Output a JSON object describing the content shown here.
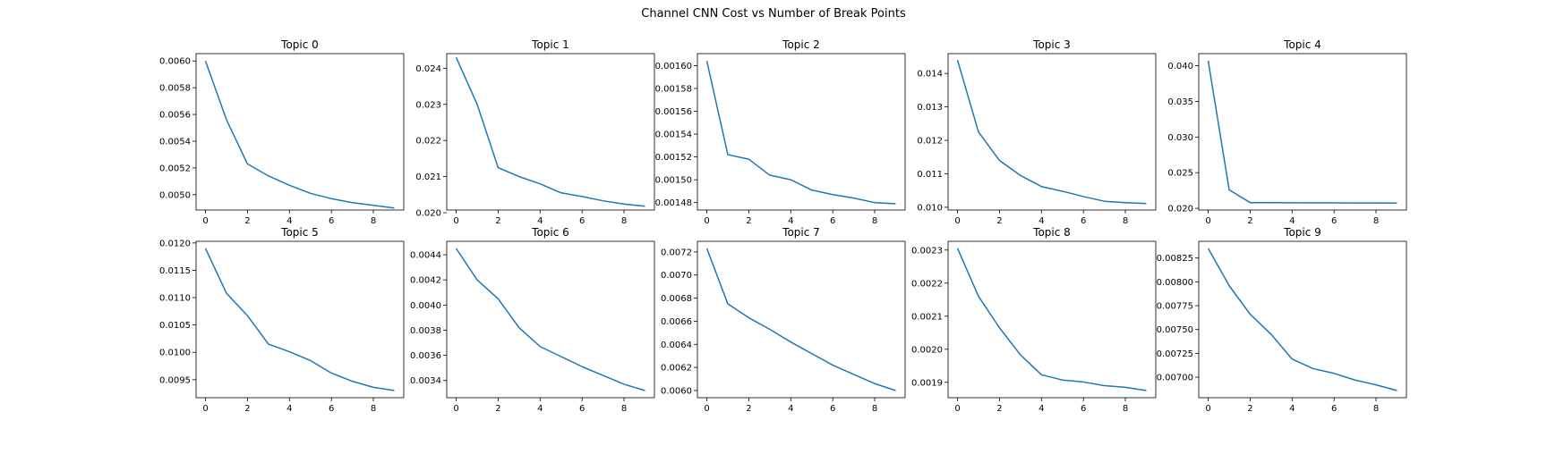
{
  "figure": {
    "title": "Channel CNN Cost vs Number of Break Points",
    "line_color": "#1f77b4"
  },
  "chart_data": [
    {
      "type": "line",
      "title": "Topic 0",
      "x": [
        0,
        1,
        2,
        3,
        4,
        5,
        6,
        7,
        8,
        9
      ],
      "series": [
        {
          "values": [
            0.006,
            0.00556,
            0.00523,
            0.00514,
            0.00507,
            0.00501,
            0.00497,
            0.00494,
            0.00492,
            0.0049
          ]
        }
      ],
      "xlim": [
        -0.45,
        9.45
      ],
      "ylim": [
        0.004885,
        0.006055
      ],
      "xticks": [
        0,
        2,
        4,
        6,
        8
      ],
      "yticks": [
        0.005,
        0.0052,
        0.0054,
        0.0056,
        0.0058,
        0.006
      ],
      "yticklabels": [
        "0.0050",
        "0.0052",
        "0.0054",
        "0.0056",
        "0.0058",
        "0.0060"
      ],
      "grid": false
    },
    {
      "type": "line",
      "title": "Topic 1",
      "x": [
        0,
        1,
        2,
        3,
        4,
        5,
        6,
        7,
        8,
        9
      ],
      "series": [
        {
          "values": [
            0.0243,
            0.023,
            0.02125,
            0.021,
            0.0208,
            0.02055,
            0.02045,
            0.02033,
            0.02024,
            0.02018
          ]
        }
      ],
      "xlim": [
        -0.45,
        9.45
      ],
      "ylim": [
        0.020075,
        0.024405
      ],
      "xticks": [
        0,
        2,
        4,
        6,
        8
      ],
      "yticks": [
        0.02,
        0.021,
        0.022,
        0.023,
        0.024
      ],
      "yticklabels": [
        "0.020",
        "0.021",
        "0.022",
        "0.023",
        "0.024"
      ],
      "grid": false
    },
    {
      "type": "line",
      "title": "Topic 2",
      "x": [
        0,
        1,
        2,
        3,
        4,
        5,
        6,
        7,
        8,
        9
      ],
      "series": [
        {
          "values": [
            0.001604,
            0.001522,
            0.001518,
            0.001504,
            0.0015,
            0.001491,
            0.001487,
            0.001484,
            0.00148,
            0.001479
          ]
        }
      ],
      "xlim": [
        -0.45,
        9.45
      ],
      "ylim": [
        0.0014735,
        0.0016105
      ],
      "xticks": [
        0,
        2,
        4,
        6,
        8
      ],
      "yticks": [
        0.00148,
        0.0015,
        0.00152,
        0.00154,
        0.00156,
        0.00158,
        0.0016
      ],
      "yticklabels": [
        "0.00148",
        "0.00150",
        "0.00152",
        "0.00154",
        "0.00156",
        "0.00158",
        "0.00160"
      ],
      "grid": false
    },
    {
      "type": "line",
      "title": "Topic 3",
      "x": [
        0,
        1,
        2,
        3,
        4,
        5,
        6,
        7,
        8,
        9
      ],
      "series": [
        {
          "values": [
            0.0144,
            0.01225,
            0.0114,
            0.01095,
            0.01062,
            0.01048,
            0.01032,
            0.01018,
            0.01014,
            0.01011
          ]
        }
      ],
      "xlim": [
        -0.45,
        9.45
      ],
      "ylim": [
        0.009918,
        0.014592
      ],
      "xticks": [
        0,
        2,
        4,
        6,
        8
      ],
      "yticks": [
        0.01,
        0.011,
        0.012,
        0.013,
        0.014
      ],
      "yticklabels": [
        "0.010",
        "0.011",
        "0.012",
        "0.013",
        "0.014"
      ],
      "grid": false
    },
    {
      "type": "line",
      "title": "Topic 4",
      "x": [
        0,
        1,
        2,
        3,
        4,
        5,
        6,
        7,
        8,
        9
      ],
      "series": [
        {
          "values": [
            0.0407,
            0.0226,
            0.0208,
            0.02079,
            0.02078,
            0.02077,
            0.02076,
            0.02075,
            0.02074,
            0.02073
          ]
        }
      ],
      "xlim": [
        -0.45,
        9.45
      ],
      "ylim": [
        0.01976,
        0.0417
      ],
      "xticks": [
        0,
        2,
        4,
        6,
        8
      ],
      "yticks": [
        0.02,
        0.025,
        0.03,
        0.035,
        0.04
      ],
      "yticklabels": [
        "0.020",
        "0.025",
        "0.030",
        "0.035",
        "0.040"
      ],
      "grid": false
    },
    {
      "type": "line",
      "title": "Topic 5",
      "x": [
        0,
        1,
        2,
        3,
        4,
        5,
        6,
        7,
        8,
        9
      ],
      "series": [
        {
          "values": [
            0.0119,
            0.01108,
            0.01067,
            0.01015,
            0.01001,
            0.00985,
            0.00962,
            0.00947,
            0.00936,
            0.0093
          ]
        }
      ],
      "xlim": [
        -0.45,
        9.45
      ],
      "ylim": [
        0.00917,
        0.01203
      ],
      "xticks": [
        0,
        2,
        4,
        6,
        8
      ],
      "yticks": [
        0.0095,
        0.01,
        0.0105,
        0.011,
        0.0115,
        0.012
      ],
      "yticklabels": [
        "0.0095",
        "0.0100",
        "0.0105",
        "0.0110",
        "0.0115",
        "0.0120"
      ],
      "grid": false
    },
    {
      "type": "line",
      "title": "Topic 6",
      "x": [
        0,
        1,
        2,
        3,
        4,
        5,
        6,
        7,
        8,
        9
      ],
      "series": [
        {
          "values": [
            0.00445,
            0.0042,
            0.00405,
            0.00382,
            0.00367,
            0.00359,
            0.00351,
            0.00344,
            0.00337,
            0.00332
          ]
        }
      ],
      "xlim": [
        -0.45,
        9.45
      ],
      "ylim": [
        0.003263,
        0.004507
      ],
      "xticks": [
        0,
        2,
        4,
        6,
        8
      ],
      "yticks": [
        0.0034,
        0.0036,
        0.0038,
        0.004,
        0.0042,
        0.0044
      ],
      "yticklabels": [
        "0.0034",
        "0.0036",
        "0.0038",
        "0.0040",
        "0.0042",
        "0.0044"
      ],
      "grid": false
    },
    {
      "type": "line",
      "title": "Topic 7",
      "x": [
        0,
        1,
        2,
        3,
        4,
        5,
        6,
        7,
        8,
        9
      ],
      "series": [
        {
          "values": [
            0.00723,
            0.00675,
            0.00663,
            0.00653,
            0.00642,
            0.00632,
            0.00622,
            0.00614,
            0.00606,
            0.006
          ]
        }
      ],
      "xlim": [
        -0.45,
        9.45
      ],
      "ylim": [
        0.005938,
        0.007292
      ],
      "xticks": [
        0,
        2,
        4,
        6,
        8
      ],
      "yticks": [
        0.006,
        0.0062,
        0.0064,
        0.0066,
        0.0068,
        0.007,
        0.0072
      ],
      "yticklabels": [
        "0.0060",
        "0.0062",
        "0.0064",
        "0.0066",
        "0.0068",
        "0.0070",
        "0.0072"
      ],
      "grid": false
    },
    {
      "type": "line",
      "title": "Topic 8",
      "x": [
        0,
        1,
        2,
        3,
        4,
        5,
        6,
        7,
        8,
        9
      ],
      "series": [
        {
          "values": [
            0.002305,
            0.00216,
            0.002065,
            0.001983,
            0.001923,
            0.001907,
            0.001901,
            0.00189,
            0.001885,
            0.001875
          ]
        }
      ],
      "xlim": [
        -0.45,
        9.45
      ],
      "ylim": [
        0.0018535,
        0.0023265
      ],
      "xticks": [
        0,
        2,
        4,
        6,
        8
      ],
      "yticks": [
        0.0019,
        0.002,
        0.0021,
        0.0022,
        0.0023
      ],
      "yticklabels": [
        "0.0019",
        "0.0020",
        "0.0021",
        "0.0022",
        "0.0023"
      ],
      "grid": false
    },
    {
      "type": "line",
      "title": "Topic 9",
      "x": [
        0,
        1,
        2,
        3,
        4,
        5,
        6,
        7,
        8,
        9
      ],
      "series": [
        {
          "values": [
            0.00835,
            0.00796,
            0.00766,
            0.00745,
            0.00719,
            0.00709,
            0.00704,
            0.00697,
            0.00692,
            0.00686
          ]
        }
      ],
      "xlim": [
        -0.45,
        9.45
      ],
      "ylim": [
        0.006785,
        0.008425
      ],
      "xticks": [
        0,
        2,
        4,
        6,
        8
      ],
      "yticks": [
        0.007,
        0.00725,
        0.0075,
        0.00775,
        0.008,
        0.00825
      ],
      "yticklabels": [
        "0.00700",
        "0.00725",
        "0.00750",
        "0.00775",
        "0.00800",
        "0.00825"
      ],
      "grid": false
    }
  ]
}
